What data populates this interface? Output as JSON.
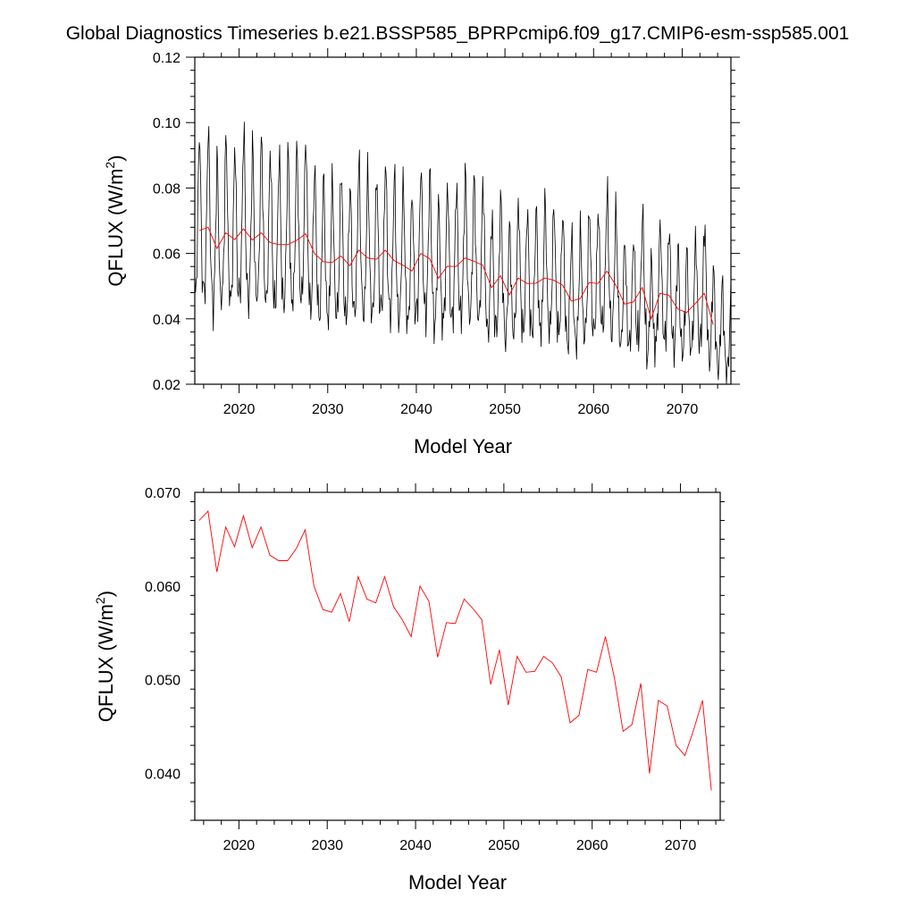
{
  "title": "Global Diagnostics Timeseries b.e21.BSSP585_BPRPcmip6.f09_g17.CMIP6-esm-ssp585.001",
  "chart_data": [
    {
      "type": "line",
      "xlabel": "Model Year",
      "ylabel": "QFLUX (W/m",
      "ylabel_sup": "2",
      "ylabel_close": ")",
      "xlim": [
        2015,
        2075.5
      ],
      "ylim": [
        0.02,
        0.12
      ],
      "xticks": [
        2020,
        2030,
        2040,
        2050,
        2060,
        2070
      ],
      "xtick_labels": [
        "2020",
        "2030",
        "2040",
        "2050",
        "2060",
        "2070"
      ],
      "yticks": [
        0.02,
        0.04,
        0.06,
        0.08,
        0.1,
        0.12
      ],
      "ytick_labels": [
        "0.02",
        "0.04",
        "0.06",
        "0.08",
        "0.10",
        "0.12"
      ],
      "grid": false,
      "series": [
        {
          "color": "#000000",
          "monthly": true,
          "start": 2015.0,
          "step": 0.083333,
          "annual_pattern": [
            0.042,
            0.04,
            0.043,
            0.05,
            0.06,
            0.072,
            0.082,
            0.08,
            0.068,
            0.055,
            0.046,
            0.042
          ],
          "annual_means": [
            0.067,
            0.068,
            0.0615,
            0.0663,
            0.0642,
            0.0675,
            0.0641,
            0.0663,
            0.0633,
            0.0627,
            0.0627,
            0.064,
            0.066,
            0.06,
            0.0575,
            0.0572,
            0.0592,
            0.0562,
            0.061,
            0.0586,
            0.0582,
            0.061,
            0.0578,
            0.0564,
            0.0546,
            0.06,
            0.0584,
            0.0524,
            0.0561,
            0.056,
            0.0586,
            0.0576,
            0.0564,
            0.0495,
            0.0532,
            0.0473,
            0.0525,
            0.0508,
            0.0509,
            0.0525,
            0.0518,
            0.0503,
            0.0454,
            0.0462,
            0.0511,
            0.0508,
            0.0546,
            0.0503,
            0.0445,
            0.0452,
            0.0496,
            0.04,
            0.0478,
            0.0472,
            0.043,
            0.0419,
            0.0447,
            0.0478,
            0.0382,
            0.035,
            0.033
          ]
        },
        {
          "color": "#ff0000",
          "x": [
            2015.5,
            2016.5,
            2017.5,
            2018.5,
            2019.5,
            2020.5,
            2021.5,
            2022.5,
            2023.5,
            2024.5,
            2025.5,
            2026.5,
            2027.5,
            2028.5,
            2029.5,
            2030.5,
            2031.5,
            2032.5,
            2033.5,
            2034.5,
            2035.5,
            2036.5,
            2037.5,
            2038.5,
            2039.5,
            2040.5,
            2041.5,
            2042.5,
            2043.5,
            2044.5,
            2045.5,
            2046.5,
            2047.5,
            2048.5,
            2049.5,
            2050.5,
            2051.5,
            2052.5,
            2053.5,
            2054.5,
            2055.5,
            2056.5,
            2057.5,
            2058.5,
            2059.5,
            2060.5,
            2061.5,
            2062.5,
            2063.5,
            2064.5,
            2065.5,
            2066.5,
            2067.5,
            2068.5,
            2069.5,
            2070.5,
            2071.5,
            2072.5,
            2073.5
          ],
          "y": [
            0.067,
            0.068,
            0.0615,
            0.0663,
            0.0642,
            0.0675,
            0.0641,
            0.0663,
            0.0633,
            0.0627,
            0.0627,
            0.064,
            0.066,
            0.06,
            0.0575,
            0.0572,
            0.0592,
            0.0562,
            0.061,
            0.0586,
            0.0582,
            0.061,
            0.0578,
            0.0564,
            0.0546,
            0.06,
            0.0584,
            0.0524,
            0.0561,
            0.056,
            0.0586,
            0.0576,
            0.0564,
            0.0495,
            0.0532,
            0.0473,
            0.0525,
            0.0508,
            0.0509,
            0.0525,
            0.0518,
            0.0503,
            0.0454,
            0.0462,
            0.0511,
            0.0508,
            0.0546,
            0.0503,
            0.0445,
            0.0452,
            0.0496,
            0.04,
            0.0478,
            0.0472,
            0.043,
            0.0419,
            0.0447,
            0.0478,
            0.0382
          ]
        }
      ]
    },
    {
      "type": "line",
      "xlabel": "Model Year",
      "ylabel": "QFLUX (W/m",
      "ylabel_sup": "2",
      "ylabel_close": ")",
      "xlim": [
        2015,
        2074.5
      ],
      "ylim": [
        0.035,
        0.07
      ],
      "xticks": [
        2020,
        2030,
        2040,
        2050,
        2060,
        2070
      ],
      "xtick_labels": [
        "2020",
        "2030",
        "2040",
        "2050",
        "2060",
        "2070"
      ],
      "yticks": [
        0.04,
        0.05,
        0.06,
        0.07
      ],
      "ytick_labels": [
        "0.040",
        "0.050",
        "0.060",
        "0.070"
      ],
      "grid": false,
      "series": [
        {
          "color": "#ff0000",
          "x": [
            2015.5,
            2016.5,
            2017.5,
            2018.5,
            2019.5,
            2020.5,
            2021.5,
            2022.5,
            2023.5,
            2024.5,
            2025.5,
            2026.5,
            2027.5,
            2028.5,
            2029.5,
            2030.5,
            2031.5,
            2032.5,
            2033.5,
            2034.5,
            2035.5,
            2036.5,
            2037.5,
            2038.5,
            2039.5,
            2040.5,
            2041.5,
            2042.5,
            2043.5,
            2044.5,
            2045.5,
            2046.5,
            2047.5,
            2048.5,
            2049.5,
            2050.5,
            2051.5,
            2052.5,
            2053.5,
            2054.5,
            2055.5,
            2056.5,
            2057.5,
            2058.5,
            2059.5,
            2060.5,
            2061.5,
            2062.5,
            2063.5,
            2064.5,
            2065.5,
            2066.5,
            2067.5,
            2068.5,
            2069.5,
            2070.5,
            2071.5,
            2072.5,
            2073.5
          ],
          "y": [
            0.067,
            0.068,
            0.0615,
            0.0663,
            0.0642,
            0.0675,
            0.0641,
            0.0663,
            0.0633,
            0.0627,
            0.0627,
            0.064,
            0.066,
            0.06,
            0.0575,
            0.0572,
            0.0592,
            0.0562,
            0.061,
            0.0586,
            0.0582,
            0.061,
            0.0578,
            0.0564,
            0.0546,
            0.06,
            0.0584,
            0.0524,
            0.0561,
            0.056,
            0.0586,
            0.0576,
            0.0564,
            0.0495,
            0.0532,
            0.0473,
            0.0525,
            0.0508,
            0.0509,
            0.0525,
            0.0518,
            0.0503,
            0.0454,
            0.0462,
            0.0511,
            0.0508,
            0.0546,
            0.0503,
            0.0445,
            0.0452,
            0.0496,
            0.04,
            0.0478,
            0.0472,
            0.043,
            0.0419,
            0.0447,
            0.0478,
            0.0382
          ]
        }
      ]
    }
  ]
}
